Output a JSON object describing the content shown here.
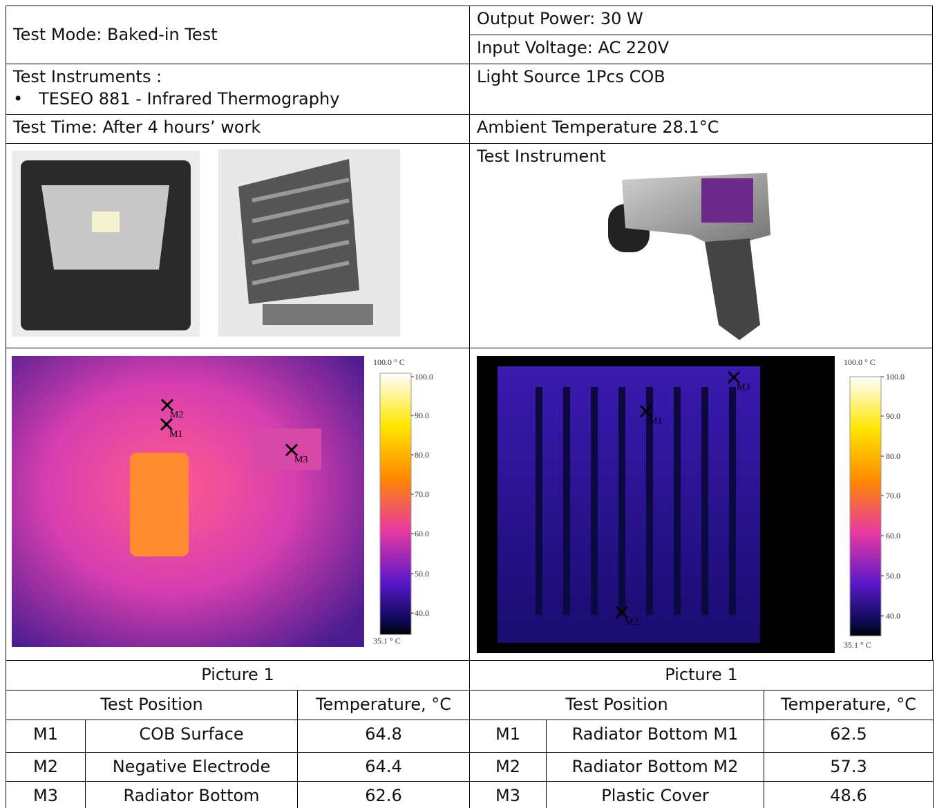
{
  "header": {
    "test_mode": "Test Mode: Baked-in Test",
    "output_power": "Output Power: 30 W",
    "input_voltage": "Input Voltage: AC 220V",
    "test_instruments_label": "Test Instruments :",
    "instrument_item": "TESEO 881 - Infrared Thermography",
    "light_source": "Light Source 1Pcs COB",
    "test_time": "Test Time: After 4 hours’ work",
    "ambient_temp": "Ambient Temperature 28.1°C",
    "test_instrument_title": "Test Instrument"
  },
  "thermal": [
    {
      "scale_top": "100.0 ° C",
      "scale_bottom": "35.1 ° C",
      "ticks": [
        "100.0",
        "90.0",
        "80.0",
        "70.0",
        "60.0",
        "50.0",
        "40.0"
      ],
      "markers": [
        "M1",
        "M2",
        "M3"
      ]
    },
    {
      "scale_top": "100.0 ° C",
      "scale_bottom": "35.1 ° C",
      "ticks": [
        "100.0",
        "90.0",
        "80.0",
        "70.0",
        "60.0",
        "50.0",
        "40.0"
      ],
      "markers": [
        "M1",
        "M2",
        "M3"
      ]
    }
  ],
  "captions": [
    "Picture 1",
    "Picture 1"
  ],
  "tables": [
    {
      "headers": [
        "Test Position",
        "Temperature, °C"
      ],
      "rows": [
        [
          "M1",
          "COB Surface",
          "64.8"
        ],
        [
          "M2",
          "Negative Electrode",
          "64.4"
        ],
        [
          "M3",
          "Radiator Bottom",
          "62.6"
        ]
      ]
    },
    {
      "headers": [
        "Test Position",
        "Temperature, °C"
      ],
      "rows": [
        [
          "M1",
          "Radiator Bottom M1",
          "62.5"
        ],
        [
          "M2",
          "Radiator Bottom M2",
          "57.3"
        ],
        [
          "M3",
          "Plastic Cover",
          "48.6"
        ]
      ]
    }
  ]
}
